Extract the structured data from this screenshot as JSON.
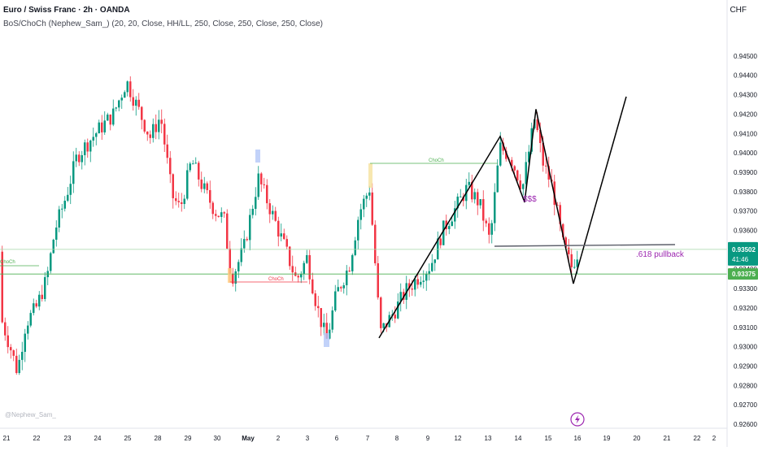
{
  "header": {
    "title": "Euro / Swiss Franc · 2h · OANDA",
    "indicator": "BoS/ChoCh (Nephew_Sam_) (20, 20, Close, HH/LL, 250, Close, 250, Close, 250, Close)",
    "currency": "CHF"
  },
  "watermark": "@Nephew_Sam_",
  "colors": {
    "up": "#089981",
    "down": "#f23645",
    "choch_green": "#4caf50",
    "choch_red": "#f23645",
    "annotation": "#9c27b0",
    "drawing": "#000000",
    "label_green": "#089981"
  },
  "chart_data": {
    "type": "candlestick",
    "y_axis": {
      "ticks": [
        "0.92600",
        "0.92700",
        "0.92800",
        "0.92900",
        "0.93000",
        "0.93100",
        "0.93200",
        "0.93300",
        "0.93400",
        "0.93500",
        "0.93600",
        "0.93700",
        "0.93800",
        "0.93900",
        "0.94000",
        "0.94100",
        "0.94200",
        "0.94300",
        "0.94400",
        "0.94500"
      ],
      "range": [
        0.9255,
        0.947
      ]
    },
    "x_axis": {
      "ticks": [
        "21",
        "22",
        "23",
        "24",
        "25",
        "28",
        "29",
        "30",
        "May",
        "2",
        "3",
        "6",
        "7",
        "8",
        "9",
        "12",
        "13",
        "14",
        "15",
        "16",
        "19",
        "20",
        "21",
        "22",
        "2"
      ]
    },
    "price_labels": [
      {
        "value": "0.93502",
        "countdown": "41:46"
      },
      {
        "value": "0.93375"
      }
    ],
    "levels": [
      {
        "name": "upper-level",
        "price": 0.93502
      },
      {
        "name": "lower-level",
        "price": 0.93375
      }
    ],
    "annotations": {
      "choch_labels": [
        "ChoCh",
        "ChoCh",
        "ChoCh"
      ],
      "liquidity": "$$$",
      "pullback": ".618 pullback"
    },
    "zigzag_prices": [
      0.93045,
      0.94085,
      0.93745,
      0.94225,
      0.93325,
      0.9429
    ]
  }
}
